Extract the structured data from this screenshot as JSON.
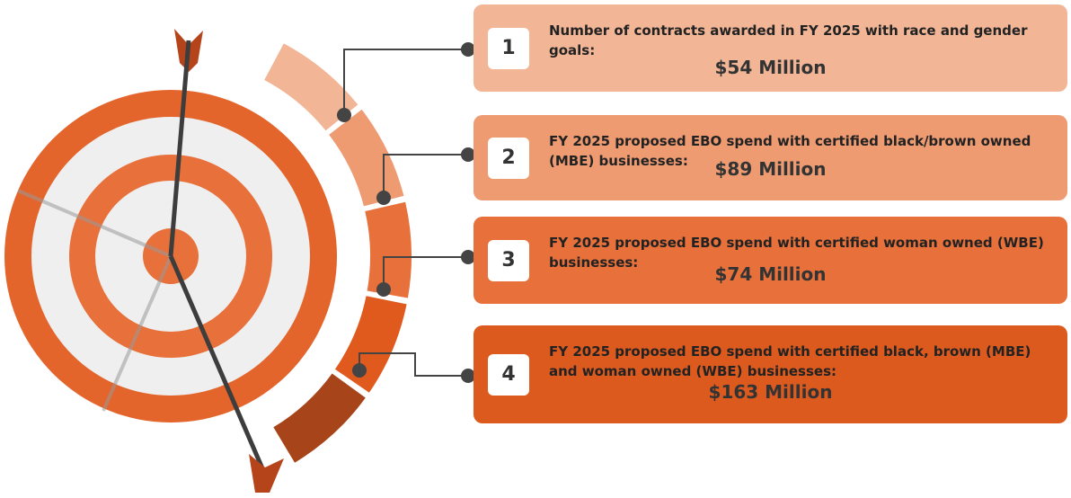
{
  "items": [
    {
      "number": "1",
      "text": "Number of contracts awarded in FY 2025 with race and gender goals:",
      "amount": "$54 Million"
    },
    {
      "number": "2",
      "text": "FY 2025 proposed EBO spend with certified black/brown owned (MBE) businesses:",
      "amount": "$89 Million"
    },
    {
      "number": "3",
      "text": "FY 2025 proposed EBO spend with certified woman owned (WBE) businesses:",
      "amount": "$74 Million"
    },
    {
      "number": "4",
      "text": "FY 2025 proposed EBO spend with certified black, brown (MBE) and woman owned (WBE) businesses:",
      "amount": "$163 Million"
    }
  ]
}
